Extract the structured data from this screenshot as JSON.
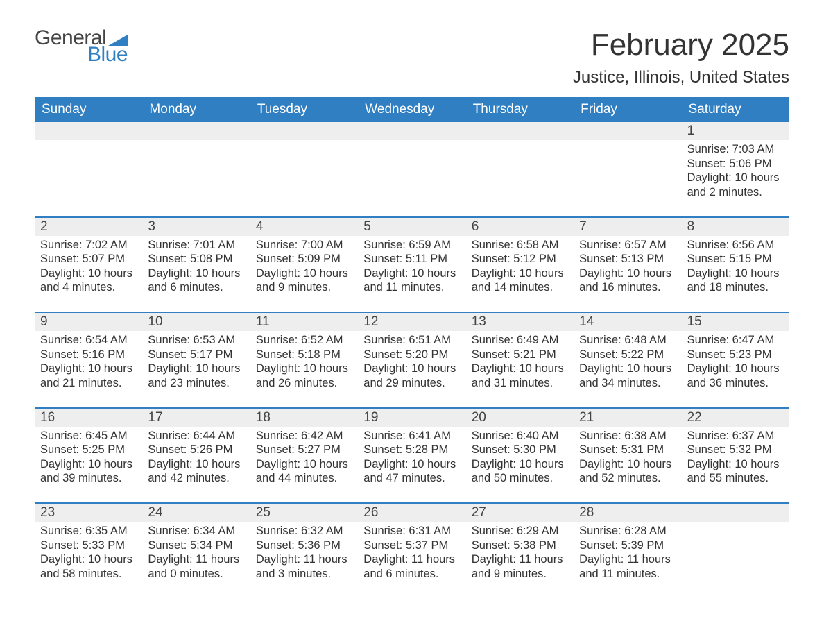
{
  "logo": {
    "general": "General",
    "blue": "Blue",
    "flag_color": "#2f7fc2"
  },
  "title": {
    "month": "February 2025",
    "location": "Justice, Illinois, United States"
  },
  "colors": {
    "header_bg": "#2f7fc2",
    "header_text": "#ffffff",
    "daynum_bg": "#eeeeee",
    "row_border": "#2f7fc2",
    "body_text": "#333333",
    "background": "#ffffff"
  },
  "weekday_labels": [
    "Sunday",
    "Monday",
    "Tuesday",
    "Wednesday",
    "Thursday",
    "Friday",
    "Saturday"
  ],
  "weeks": [
    [
      null,
      null,
      null,
      null,
      null,
      null,
      {
        "day": "1",
        "sunrise": "Sunrise: 7:03 AM",
        "sunset": "Sunset: 5:06 PM",
        "daylight": "Daylight: 10 hours and 2 minutes."
      }
    ],
    [
      {
        "day": "2",
        "sunrise": "Sunrise: 7:02 AM",
        "sunset": "Sunset: 5:07 PM",
        "daylight": "Daylight: 10 hours and 4 minutes."
      },
      {
        "day": "3",
        "sunrise": "Sunrise: 7:01 AM",
        "sunset": "Sunset: 5:08 PM",
        "daylight": "Daylight: 10 hours and 6 minutes."
      },
      {
        "day": "4",
        "sunrise": "Sunrise: 7:00 AM",
        "sunset": "Sunset: 5:09 PM",
        "daylight": "Daylight: 10 hours and 9 minutes."
      },
      {
        "day": "5",
        "sunrise": "Sunrise: 6:59 AM",
        "sunset": "Sunset: 5:11 PM",
        "daylight": "Daylight: 10 hours and 11 minutes."
      },
      {
        "day": "6",
        "sunrise": "Sunrise: 6:58 AM",
        "sunset": "Sunset: 5:12 PM",
        "daylight": "Daylight: 10 hours and 14 minutes."
      },
      {
        "day": "7",
        "sunrise": "Sunrise: 6:57 AM",
        "sunset": "Sunset: 5:13 PM",
        "daylight": "Daylight: 10 hours and 16 minutes."
      },
      {
        "day": "8",
        "sunrise": "Sunrise: 6:56 AM",
        "sunset": "Sunset: 5:15 PM",
        "daylight": "Daylight: 10 hours and 18 minutes."
      }
    ],
    [
      {
        "day": "9",
        "sunrise": "Sunrise: 6:54 AM",
        "sunset": "Sunset: 5:16 PM",
        "daylight": "Daylight: 10 hours and 21 minutes."
      },
      {
        "day": "10",
        "sunrise": "Sunrise: 6:53 AM",
        "sunset": "Sunset: 5:17 PM",
        "daylight": "Daylight: 10 hours and 23 minutes."
      },
      {
        "day": "11",
        "sunrise": "Sunrise: 6:52 AM",
        "sunset": "Sunset: 5:18 PM",
        "daylight": "Daylight: 10 hours and 26 minutes."
      },
      {
        "day": "12",
        "sunrise": "Sunrise: 6:51 AM",
        "sunset": "Sunset: 5:20 PM",
        "daylight": "Daylight: 10 hours and 29 minutes."
      },
      {
        "day": "13",
        "sunrise": "Sunrise: 6:49 AM",
        "sunset": "Sunset: 5:21 PM",
        "daylight": "Daylight: 10 hours and 31 minutes."
      },
      {
        "day": "14",
        "sunrise": "Sunrise: 6:48 AM",
        "sunset": "Sunset: 5:22 PM",
        "daylight": "Daylight: 10 hours and 34 minutes."
      },
      {
        "day": "15",
        "sunrise": "Sunrise: 6:47 AM",
        "sunset": "Sunset: 5:23 PM",
        "daylight": "Daylight: 10 hours and 36 minutes."
      }
    ],
    [
      {
        "day": "16",
        "sunrise": "Sunrise: 6:45 AM",
        "sunset": "Sunset: 5:25 PM",
        "daylight": "Daylight: 10 hours and 39 minutes."
      },
      {
        "day": "17",
        "sunrise": "Sunrise: 6:44 AM",
        "sunset": "Sunset: 5:26 PM",
        "daylight": "Daylight: 10 hours and 42 minutes."
      },
      {
        "day": "18",
        "sunrise": "Sunrise: 6:42 AM",
        "sunset": "Sunset: 5:27 PM",
        "daylight": "Daylight: 10 hours and 44 minutes."
      },
      {
        "day": "19",
        "sunrise": "Sunrise: 6:41 AM",
        "sunset": "Sunset: 5:28 PM",
        "daylight": "Daylight: 10 hours and 47 minutes."
      },
      {
        "day": "20",
        "sunrise": "Sunrise: 6:40 AM",
        "sunset": "Sunset: 5:30 PM",
        "daylight": "Daylight: 10 hours and 50 minutes."
      },
      {
        "day": "21",
        "sunrise": "Sunrise: 6:38 AM",
        "sunset": "Sunset: 5:31 PM",
        "daylight": "Daylight: 10 hours and 52 minutes."
      },
      {
        "day": "22",
        "sunrise": "Sunrise: 6:37 AM",
        "sunset": "Sunset: 5:32 PM",
        "daylight": "Daylight: 10 hours and 55 minutes."
      }
    ],
    [
      {
        "day": "23",
        "sunrise": "Sunrise: 6:35 AM",
        "sunset": "Sunset: 5:33 PM",
        "daylight": "Daylight: 10 hours and 58 minutes."
      },
      {
        "day": "24",
        "sunrise": "Sunrise: 6:34 AM",
        "sunset": "Sunset: 5:34 PM",
        "daylight": "Daylight: 11 hours and 0 minutes."
      },
      {
        "day": "25",
        "sunrise": "Sunrise: 6:32 AM",
        "sunset": "Sunset: 5:36 PM",
        "daylight": "Daylight: 11 hours and 3 minutes."
      },
      {
        "day": "26",
        "sunrise": "Sunrise: 6:31 AM",
        "sunset": "Sunset: 5:37 PM",
        "daylight": "Daylight: 11 hours and 6 minutes."
      },
      {
        "day": "27",
        "sunrise": "Sunrise: 6:29 AM",
        "sunset": "Sunset: 5:38 PM",
        "daylight": "Daylight: 11 hours and 9 minutes."
      },
      {
        "day": "28",
        "sunrise": "Sunrise: 6:28 AM",
        "sunset": "Sunset: 5:39 PM",
        "daylight": "Daylight: 11 hours and 11 minutes."
      },
      null
    ]
  ]
}
